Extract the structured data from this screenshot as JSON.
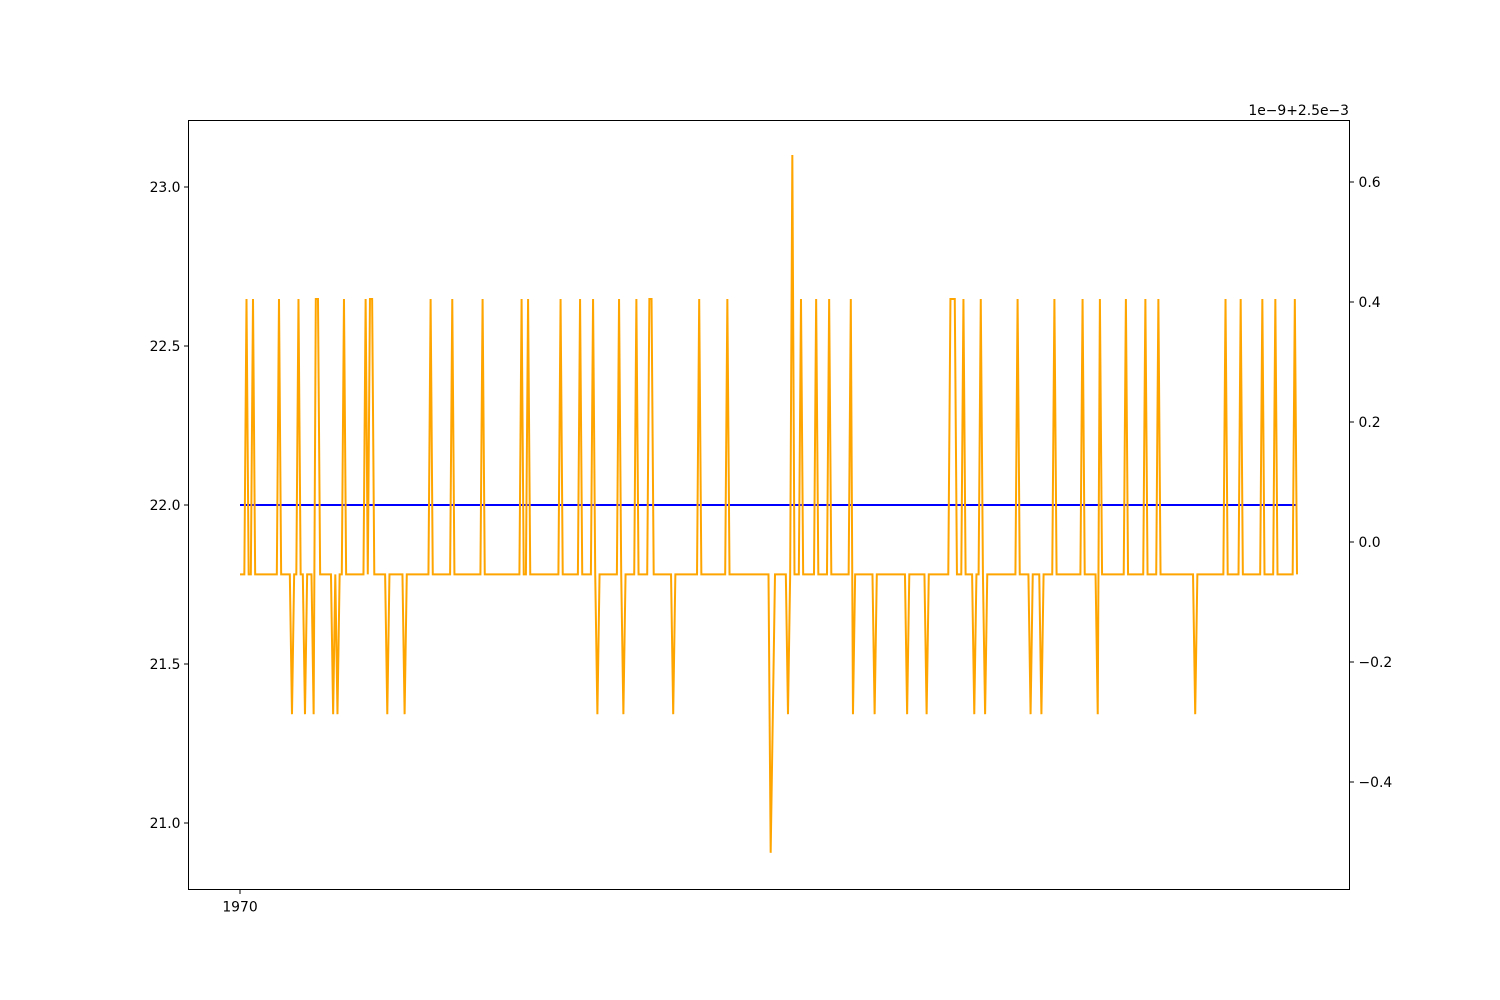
{
  "chart_data": {
    "type": "line",
    "title": "",
    "xlabel": "",
    "ylabel": "",
    "grid": false,
    "legend": "none",
    "x_tick_labels": [
      "1970"
    ],
    "left_axis": {
      "ylim": [
        20.9,
        23.1
      ],
      "ticks": [
        21.0,
        21.5,
        22.0,
        22.5,
        23.0
      ],
      "tick_labels": [
        "21.0",
        "21.5",
        "22.0",
        "22.5",
        "23.0"
      ]
    },
    "right_axis": {
      "offset_label": "1e−9+2.5e−3",
      "ylim": [
        -0.52,
        0.65
      ],
      "ticks": [
        -0.4,
        -0.2,
        0.0,
        0.2,
        0.4,
        0.6
      ],
      "tick_labels": [
        "−0.4",
        "−0.2",
        "0.0",
        "0.2",
        "0.4",
        "0.6"
      ]
    },
    "x_index_range": [
      0,
      413
    ],
    "series": [
      {
        "axis": "left",
        "color": "#0000ff",
        "values": [
          22.0,
          22.0
        ]
      },
      {
        "axis": "right",
        "color": "#ffa500",
        "base": -0.054,
        "default": 0.405,
        "level_codes": "-1,0,0,h,0,0,h,0,0,0,0,0,0,0,0,0,0,0,h,0,0,0,0,0,l,0,0,h,0,0,l,0,0,0,l,h,h,0,0,0,0,0,0,l,0,l,0,0,h,0,0,0,0,0,0,0,0,0,h,0,h,h,0,0,0,0,0,0,l,0,0,0,0,0,0,0,l,0,0,0,0,0,0,0,0,0,0,0,h,0,0,0,0,0,0,0,0,0,h,0,0,0,0,0,0,0,0,0,0,0,0,0,h,0,0,0,0,0,0,0,0,0,0,0,0,0,0,0,0,0,h,0,0,h,0,0,0,0,0,0,0,0,0,0,0,0,0,0,h,0,0,0,0,0,0,0,0,h,0,0,0,0,0,h,0,l,0,0,0,0,0,0,0,0,0,h,0,l,0,0,0,0,0,h,0,0,0,0,0,h,h,0,0,0,0,0,0,0,0,0,l,0,0,0,0,0,0,0,0,0,0,0,h,0,0,0,0,0,0,0,0,0,0,0,0,h,0,0,0,0,0,0,0,0,0,0,0,0,0,0,0,0,0,0,0,0,l,0,0,0,0,0,0,l,0,0,0,0,0,h,0,0,0,0,0,0,h,0,0,0,0,0,h,0,0,0,0,0,0,0,0,0,h,l,0,0,0,0,0,0,0,0,0,l,0,0,0,0,0,0,0,0,0,0,0,0,0,0,l,0,0,0,0,0,0,0,0,l,0,0,0,0,0,0,0,0,0,0,h,h,h,0,0,0,h,0,0,0,0,l,0,0,h,0,l,0,0,0,0,0,0,0,0,0,0,0,0,0,0,h,0,0,0,0,0,l,0,0,0,0,l,0,0,0,0,0,h,0,0,0,0,0,0,0,0,0,0,0,0,h,0,0,0,0,0,0,l,h,0,0,0,0,0,0,0,0,0,0,0,h,0,0,0,0,0,0,0,0,h,0,0,0,0,0,h,0,0,0,0,0,0,0,0,0,0,0,0,0,0,0,0,l,0,0,0,0,0,0,0,0,0,0,0,0,0,h,0,0,0,0,0,0,h,0,0,0,0,0,0,0,0,0,h,0,0,0,0,0,h,0,0,0,0,0,0,0,0,h,0",
        "code_meaning": {
          "0": "base",
          "h": 0.405,
          "l": -0.287
        }
      }
    ],
    "orange_x_breaks": {
      "count": 413,
      "spike_up_index": 255,
      "spike_up_value": 0.645,
      "spike_down_index": 245,
      "spike_down_value": -0.518
    }
  }
}
